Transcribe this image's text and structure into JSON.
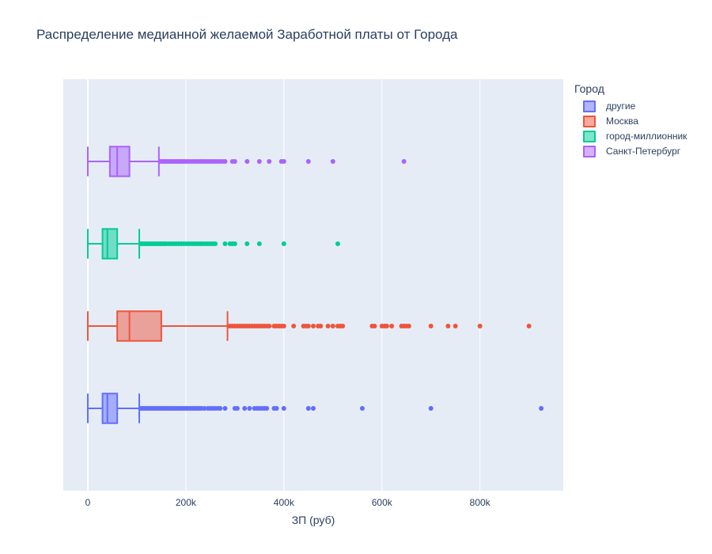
{
  "chart_data": {
    "type": "box",
    "orientation": "horizontal",
    "title": "Распределение медианной желаемой Заработной платы от Города",
    "xlabel": "ЗП (руб)",
    "xlim": [
      -50000,
      970000
    ],
    "xticks": [
      {
        "value": 0,
        "label": "0"
      },
      {
        "value": 200000,
        "label": "200k"
      },
      {
        "value": 400000,
        "label": "400k"
      },
      {
        "value": 600000,
        "label": "600k"
      },
      {
        "value": 800000,
        "label": "800k"
      }
    ],
    "legend_title": "Город",
    "legend_position": "top-right",
    "grid": true,
    "series": [
      {
        "name": "другие",
        "color": "#636efa",
        "fill": "rgba(99,110,250,0.5)",
        "stats": {
          "min": 0,
          "q1": 30000,
          "median": 40000,
          "q3": 60000,
          "max": 105000
        },
        "outliers": [
          108000,
          112000,
          116000,
          120000,
          124000,
          128000,
          132000,
          136000,
          140000,
          144000,
          148000,
          152000,
          156000,
          160000,
          164000,
          168000,
          172000,
          176000,
          180000,
          184000,
          188000,
          192000,
          196000,
          200000,
          204000,
          208000,
          212000,
          216000,
          220000,
          224000,
          228000,
          232000,
          238000,
          245000,
          250000,
          255000,
          260000,
          265000,
          270000,
          280000,
          300000,
          305000,
          320000,
          330000,
          340000,
          345000,
          350000,
          355000,
          360000,
          365000,
          380000,
          385000,
          400000,
          450000,
          460000,
          560000,
          700000,
          925000
        ]
      },
      {
        "name": "Москва",
        "color": "#ef553b",
        "fill": "rgba(239,85,59,0.5)",
        "stats": {
          "min": 0,
          "q1": 60000,
          "median": 85000,
          "q3": 150000,
          "max": 285000
        },
        "outliers": [
          290000,
          295000,
          300000,
          305000,
          310000,
          315000,
          320000,
          325000,
          330000,
          335000,
          340000,
          345000,
          350000,
          355000,
          360000,
          365000,
          370000,
          380000,
          385000,
          390000,
          395000,
          400000,
          420000,
          440000,
          445000,
          450000,
          460000,
          470000,
          475000,
          490000,
          500000,
          510000,
          515000,
          520000,
          580000,
          585000,
          600000,
          605000,
          610000,
          620000,
          640000,
          645000,
          650000,
          655000,
          700000,
          735000,
          750000,
          800000,
          900000
        ]
      },
      {
        "name": "город-миллионник",
        "color": "#00cc96",
        "fill": "rgba(0,204,150,0.5)",
        "stats": {
          "min": 0,
          "q1": 30000,
          "median": 40000,
          "q3": 60000,
          "max": 105000
        },
        "outliers": [
          108000,
          112000,
          116000,
          120000,
          124000,
          128000,
          132000,
          136000,
          140000,
          144000,
          148000,
          152000,
          156000,
          160000,
          165000,
          170000,
          175000,
          180000,
          185000,
          190000,
          195000,
          200000,
          205000,
          210000,
          215000,
          220000,
          225000,
          230000,
          235000,
          240000,
          245000,
          250000,
          255000,
          260000,
          280000,
          290000,
          295000,
          300000,
          325000,
          350000,
          400000,
          510000
        ]
      },
      {
        "name": "Санкт-Петербург",
        "color": "#ab63fa",
        "fill": "rgba(171,99,250,0.5)",
        "stats": {
          "min": 0,
          "q1": 45000,
          "median": 60000,
          "q3": 85000,
          "max": 145000
        },
        "outliers": [
          148000,
          152000,
          156000,
          160000,
          164000,
          168000,
          172000,
          176000,
          180000,
          184000,
          188000,
          192000,
          196000,
          200000,
          205000,
          210000,
          215000,
          220000,
          225000,
          230000,
          235000,
          240000,
          245000,
          250000,
          255000,
          260000,
          265000,
          270000,
          275000,
          280000,
          295000,
          300000,
          325000,
          350000,
          370000,
          395000,
          400000,
          450000,
          500000,
          645000
        ]
      }
    ]
  }
}
